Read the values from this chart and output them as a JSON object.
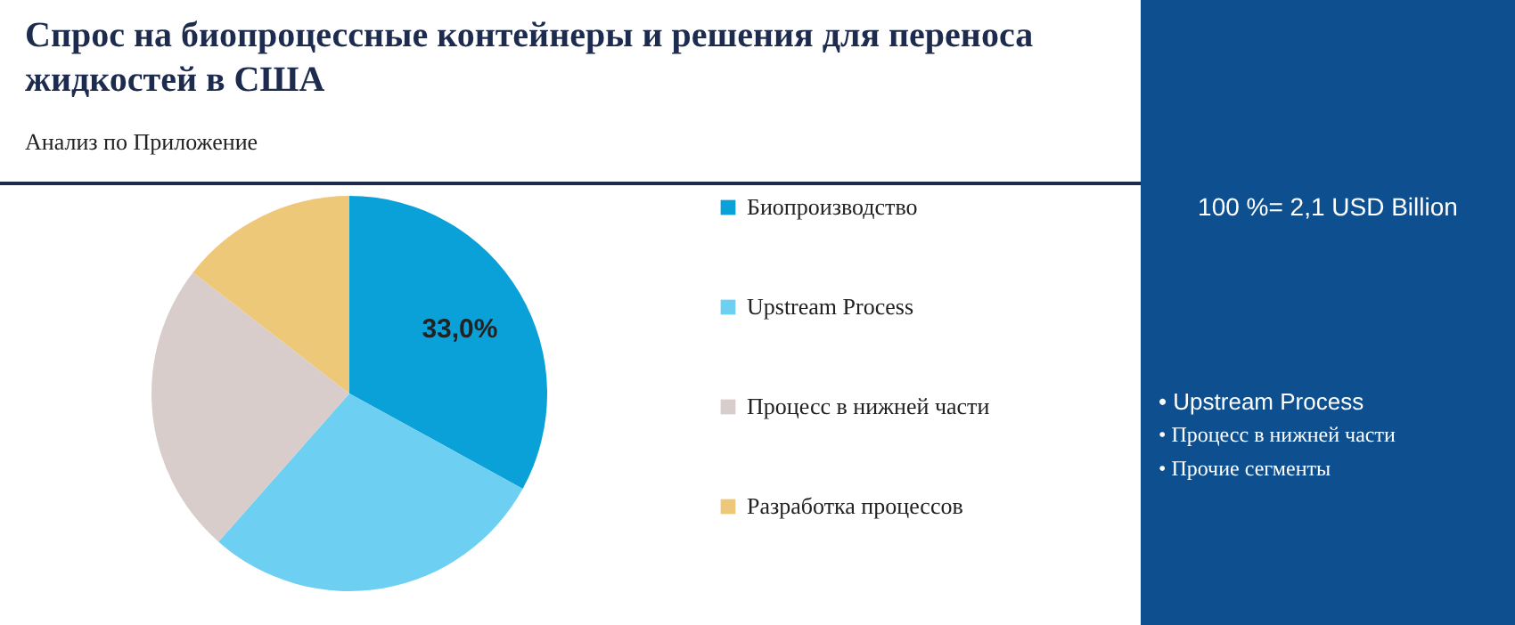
{
  "chart_data": {
    "type": "pie",
    "title": "Спрос на биопроцессные контейнеры и решения для переноса жидкостей в США",
    "subtitle": "Анализ по Приложение",
    "categories": [
      "Биопроизводство",
      "Upstream Process",
      "Процесс в нижней части",
      "Разработка процессов"
    ],
    "values": [
      33.0,
      28.5,
      24.0,
      14.5
    ],
    "colors": [
      "#0aa0d8",
      "#6dcff2",
      "#d8cdca",
      "#edc878"
    ],
    "value_labels": [
      "33,0%",
      null,
      null,
      null
    ],
    "legend": "right",
    "annotations": [
      "100 %= 2,1 USD Billion",
      "• Upstream Process",
      "• Процесс в нижней части",
      "• Прочие сегменты"
    ]
  }
}
